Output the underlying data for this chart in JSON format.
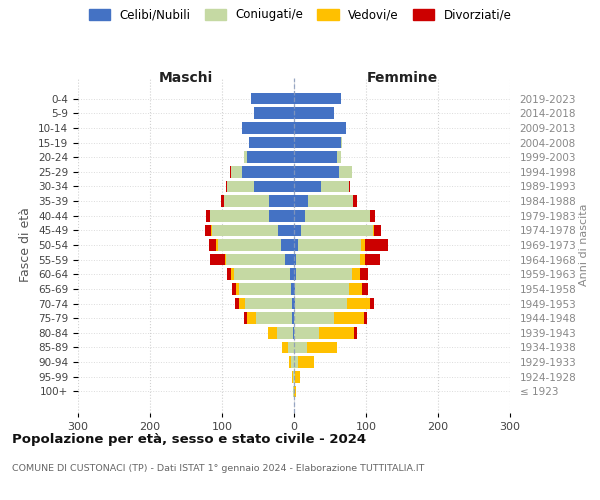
{
  "age_groups": [
    "100+",
    "95-99",
    "90-94",
    "85-89",
    "80-84",
    "75-79",
    "70-74",
    "65-69",
    "60-64",
    "55-59",
    "50-54",
    "45-49",
    "40-44",
    "35-39",
    "30-34",
    "25-29",
    "20-24",
    "15-19",
    "10-14",
    "5-9",
    "0-4"
  ],
  "birth_years": [
    "≤ 1923",
    "1924-1928",
    "1929-1933",
    "1934-1938",
    "1939-1943",
    "1944-1948",
    "1949-1953",
    "1954-1958",
    "1959-1963",
    "1964-1968",
    "1969-1973",
    "1974-1978",
    "1979-1983",
    "1984-1988",
    "1989-1993",
    "1994-1998",
    "1999-2003",
    "2004-2008",
    "2009-2013",
    "2014-2018",
    "2019-2023"
  ],
  "maschi_celibi": [
    0,
    0,
    0,
    0,
    2,
    3,
    3,
    4,
    6,
    12,
    18,
    22,
    35,
    35,
    55,
    72,
    65,
    62,
    72,
    55,
    60
  ],
  "maschi_coniugati": [
    1,
    2,
    4,
    8,
    22,
    50,
    65,
    72,
    78,
    82,
    88,
    92,
    82,
    62,
    38,
    16,
    5,
    1,
    0,
    0,
    0
  ],
  "maschi_vedovi": [
    0,
    1,
    3,
    8,
    12,
    12,
    8,
    5,
    3,
    2,
    2,
    1,
    0,
    0,
    0,
    0,
    0,
    0,
    0,
    0,
    0
  ],
  "maschi_divorziati": [
    0,
    0,
    0,
    0,
    0,
    5,
    6,
    5,
    6,
    20,
    10,
    8,
    5,
    5,
    2,
    1,
    0,
    0,
    0,
    0,
    0
  ],
  "femmine_nubili": [
    0,
    0,
    0,
    0,
    0,
    0,
    2,
    2,
    3,
    3,
    5,
    10,
    15,
    20,
    38,
    62,
    60,
    65,
    72,
    55,
    65
  ],
  "femmine_coniugate": [
    0,
    2,
    6,
    18,
    35,
    55,
    72,
    75,
    78,
    88,
    88,
    100,
    90,
    62,
    38,
    18,
    5,
    1,
    0,
    0,
    0
  ],
  "femmine_vedove": [
    3,
    6,
    22,
    42,
    48,
    42,
    32,
    18,
    10,
    8,
    5,
    1,
    0,
    0,
    0,
    0,
    0,
    0,
    0,
    0,
    0
  ],
  "femmine_divorziate": [
    0,
    0,
    0,
    0,
    5,
    5,
    5,
    8,
    12,
    20,
    32,
    10,
    8,
    5,
    2,
    1,
    0,
    0,
    0,
    0,
    0
  ],
  "color_celibi": "#4472c4",
  "color_coniugati": "#c5d9a3",
  "color_vedovi": "#ffc000",
  "color_divorziati": "#cc0000",
  "xlim": 300,
  "xticks": [
    -300,
    -200,
    -100,
    0,
    100,
    200,
    300
  ],
  "title": "Popolazione per età, sesso e stato civile - 2024",
  "subtitle": "COMUNE DI CUSTONACI (TP) - Dati ISTAT 1° gennaio 2024 - Elaborazione TUTTITALIA.IT",
  "ylabel_left": "Fasce di età",
  "ylabel_right": "Anni di nascita",
  "legend_labels": [
    "Celibi/Nubili",
    "Coniugati/e",
    "Vedovi/e",
    "Divorziati/e"
  ],
  "label_maschi": "Maschi",
  "label_femmine": "Femmine",
  "bg_color": "#ffffff",
  "grid_color": "#cccccc",
  "bar_height": 0.8
}
